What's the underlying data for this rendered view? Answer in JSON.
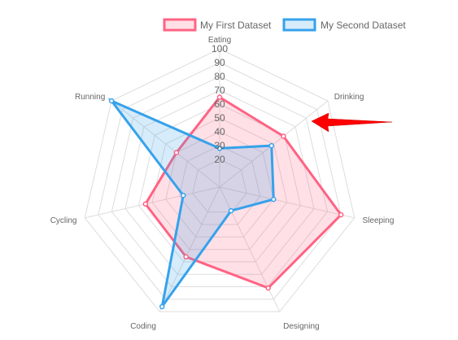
{
  "chart_data": {
    "type": "radar",
    "categories": [
      "Eating",
      "Drinking",
      "Sleeping",
      "Designing",
      "Coding",
      "Cycling",
      "Running"
    ],
    "rlim": [
      0,
      100
    ],
    "ticks": [
      20,
      30,
      40,
      50,
      60,
      70,
      80,
      90,
      100
    ],
    "grid": true,
    "legend": "top",
    "series": [
      {
        "name": "My First Dataset",
        "values": [
          65,
          59,
          90,
          81,
          56,
          55,
          40
        ],
        "stroke": "#ff6384",
        "fill": "rgba(255,99,132,0.2)"
      },
      {
        "name": "My Second Dataset",
        "values": [
          28,
          48,
          40,
          19,
          96,
          27,
          100
        ],
        "stroke": "#36a2eb",
        "fill": "rgba(54,162,235,0.2)"
      }
    ]
  },
  "annotations": [
    {
      "type": "arrow",
      "color": "#ff0000",
      "points_to": "Drinking"
    }
  ]
}
